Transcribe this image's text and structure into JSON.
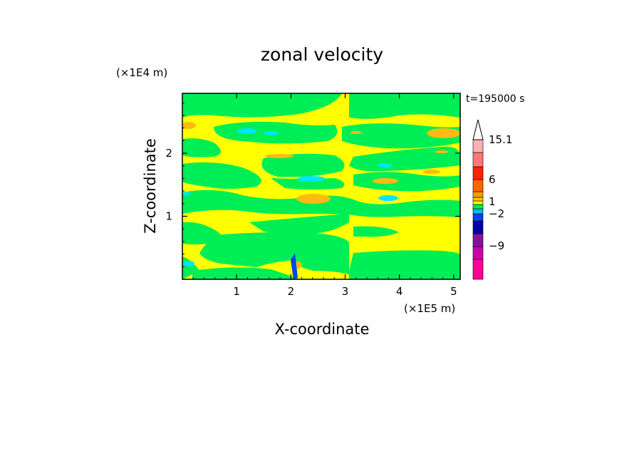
{
  "chart_data": {
    "type": "heatmap",
    "title": "zonal velocity",
    "xlabel": "X-coordinate",
    "ylabel": "Z-coordinate",
    "x_multiplier": "(×1E5 m)",
    "y_multiplier": "(×1E4 m)",
    "time_label": "t=195000 s",
    "xlim": [
      0,
      5.12
    ],
    "ylim": [
      0,
      2.95
    ],
    "x_ticks": [
      "1",
      "2",
      "3",
      "4",
      "5"
    ],
    "y_ticks": [
      "1",
      "2"
    ],
    "colorbar": {
      "labels": [
        "15.1",
        "6",
        "1",
        "−2",
        "−9"
      ],
      "colors": [
        "#ff0099",
        "#cc00aa",
        "#881199",
        "#0000aa",
        "#0044ee",
        "#00bbff",
        "#00ee55",
        "#ffff00",
        "#ffcc00",
        "#ff9900",
        "#ff6600",
        "#ff2200",
        "#ff7777",
        "#ffb0b0"
      ]
    },
    "field_colors": {
      "background": "#ffff00",
      "weak_positive": "#00ee55",
      "weak_negative": "#00e5ff",
      "moderate": "#ffbb11"
    },
    "grid": false
  }
}
